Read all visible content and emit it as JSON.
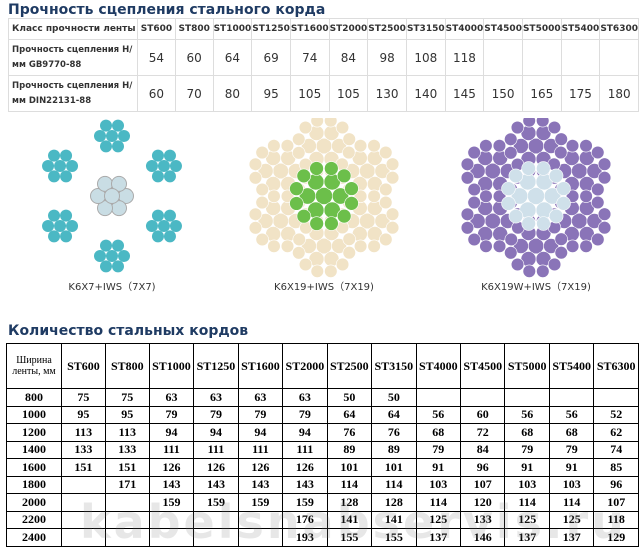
{
  "title1": "Прочность сцепления стального корда",
  "table1": {
    "header": [
      "Класс прочности ленты",
      "ST600",
      "ST800",
      "ST1000",
      "ST1250",
      "ST1600",
      "ST2000",
      "ST2500",
      "ST3150",
      "ST4000",
      "ST4500",
      "ST5000",
      "ST5400",
      "ST6300"
    ],
    "rows": [
      [
        "Прочность сцепления Н/мм GB9770-88",
        54,
        60,
        64,
        69,
        74,
        84,
        98,
        108,
        118,
        null,
        null,
        null,
        null
      ],
      [
        "Прочность сцепления Н/мм DIN22131-88",
        60,
        70,
        80,
        95,
        105,
        105,
        130,
        140,
        145,
        150,
        165,
        175,
        180
      ]
    ]
  },
  "diagrams": [
    {
      "label": "K6X7+IWS（7X7)"
    },
    {
      "label": "K6X19+IWS（7X19)"
    },
    {
      "label": "K6X19W+IWS（7X19)"
    }
  ],
  "title2": "Количество стальных кордов",
  "table2": {
    "header": [
      "Ширина ленты, мм",
      "ST600",
      "ST800",
      "ST1000",
      "ST1250",
      "ST1600",
      "ST2000",
      "ST2500",
      "ST3150",
      "ST4000",
      "ST4500",
      "ST5000",
      "ST5400",
      "ST6300"
    ],
    "rows": [
      [
        800,
        75,
        75,
        63,
        63,
        63,
        63,
        50,
        50,
        null,
        null,
        null,
        null,
        null
      ],
      [
        1000,
        95,
        95,
        79,
        79,
        79,
        79,
        64,
        64,
        56,
        60,
        56,
        56,
        52
      ],
      [
        1200,
        113,
        113,
        94,
        94,
        94,
        94,
        76,
        76,
        68,
        72,
        68,
        68,
        62
      ],
      [
        1400,
        133,
        133,
        111,
        111,
        111,
        111,
        89,
        89,
        79,
        84,
        79,
        79,
        74
      ],
      [
        1600,
        151,
        151,
        126,
        126,
        126,
        126,
        101,
        101,
        91,
        96,
        91,
        91,
        85
      ],
      [
        1800,
        null,
        171,
        143,
        143,
        143,
        143,
        114,
        114,
        103,
        107,
        103,
        103,
        96
      ],
      [
        2000,
        null,
        null,
        159,
        159,
        159,
        159,
        128,
        128,
        114,
        120,
        114,
        114,
        107
      ],
      [
        2200,
        null,
        null,
        null,
        null,
        null,
        176,
        141,
        141,
        125,
        133,
        125,
        125,
        118
      ],
      [
        2400,
        null,
        null,
        null,
        null,
        null,
        193,
        155,
        155,
        137,
        146,
        137,
        137,
        129
      ]
    ]
  },
  "watermark": "kabelsnabservis.ru"
}
